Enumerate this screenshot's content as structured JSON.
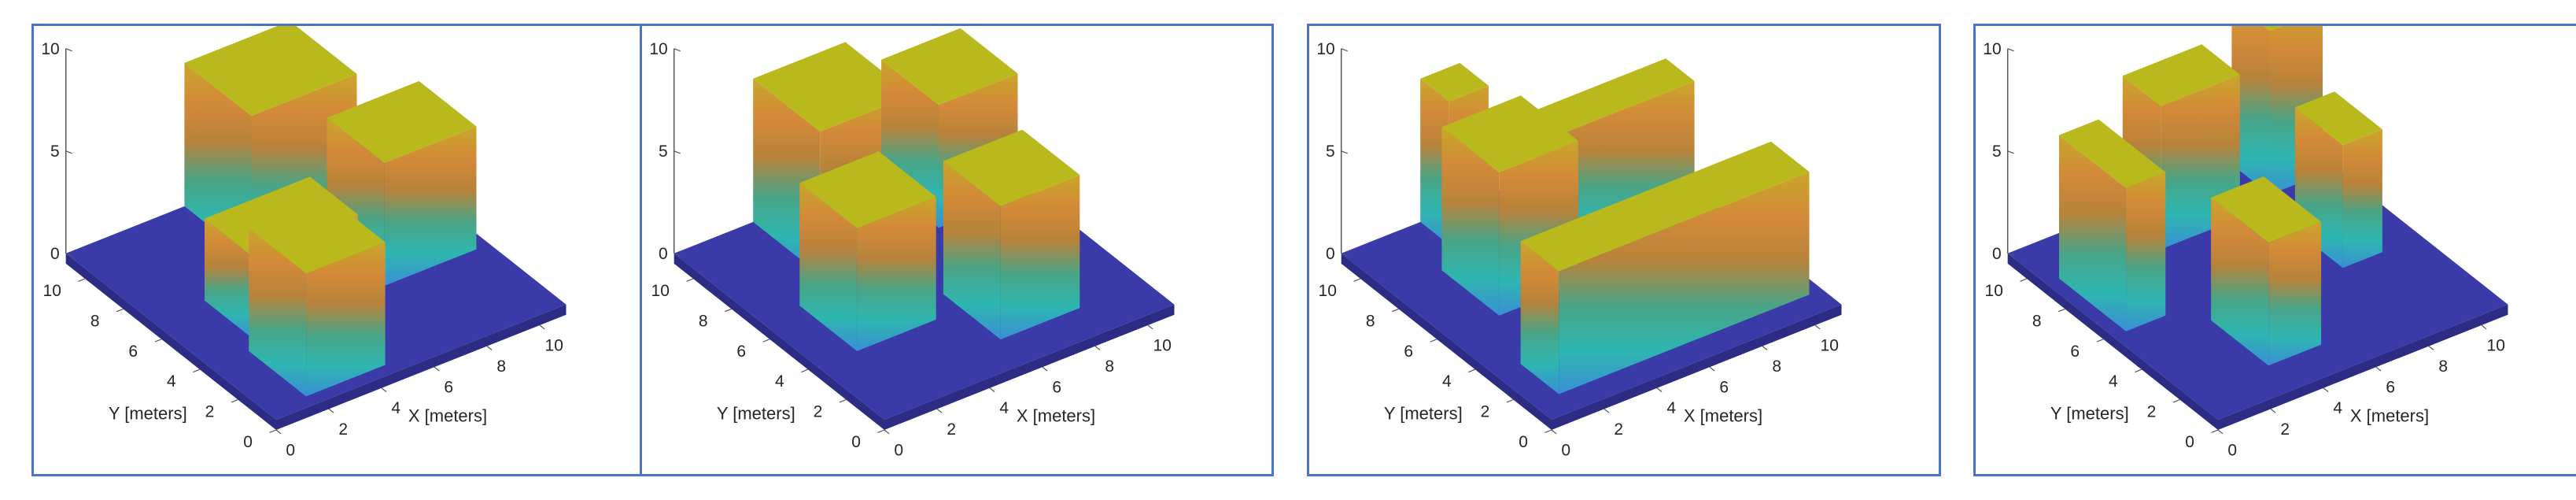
{
  "chart_data": [
    {
      "type": "3d-surface",
      "xlabel": "X [meters]",
      "ylabel": "Y [meters]",
      "zlabel": "",
      "x_ticks": [
        0,
        2,
        4,
        6,
        8,
        10
      ],
      "y_ticks": [
        0,
        2,
        4,
        6,
        8,
        10
      ],
      "z_ticks": [
        0,
        5,
        10
      ],
      "xlim": [
        0,
        11
      ],
      "ylim": [
        0,
        11
      ],
      "zlim": [
        0,
        10
      ],
      "buildings": [
        {
          "x": [
            4.5,
            8.5
          ],
          "y": [
            7.5,
            11
          ],
          "height": 7
        },
        {
          "x": [
            2,
            6
          ],
          "y": [
            4,
            6.5
          ],
          "height": 4
        },
        {
          "x": [
            1.5,
            4.5
          ],
          "y": [
            0.5,
            3.5
          ],
          "height": 6
        },
        {
          "x": [
            7,
            10.5
          ],
          "y": [
            4,
            7
          ],
          "height": 6
        }
      ]
    },
    {
      "type": "3d-surface",
      "xlabel": "X [meters]",
      "ylabel": "Y [meters]",
      "zlabel": "",
      "x_ticks": [
        0,
        2,
        4,
        6,
        8,
        10
      ],
      "y_ticks": [
        0,
        2,
        4,
        6,
        8,
        10
      ],
      "z_ticks": [
        0,
        5,
        10
      ],
      "xlim": [
        0,
        11
      ],
      "ylim": [
        0,
        11
      ],
      "zlim": [
        0,
        10
      ],
      "buildings": [
        {
          "x": [
            3,
            6.5
          ],
          "y": [
            7.5,
            11
          ],
          "height": 7
        },
        {
          "x": [
            7.5,
            10.5
          ],
          "y": [
            7.5,
            10.5
          ],
          "height": 6
        },
        {
          "x": [
            1.5,
            4.5
          ],
          "y": [
            3.5,
            6.5
          ],
          "height": 6
        },
        {
          "x": [
            5.5,
            8.5
          ],
          "y": [
            1.5,
            4.5
          ],
          "height": 6.5
        }
      ]
    },
    {
      "type": "3d-surface",
      "xlabel": "X [meters]",
      "ylabel": "Y [meters]",
      "zlabel": "",
      "x_ticks": [
        0,
        2,
        4,
        6,
        8,
        10
      ],
      "y_ticks": [
        0,
        2,
        4,
        6,
        8,
        10
      ],
      "z_ticks": [
        0,
        5,
        10
      ],
      "xlim": [
        0,
        11
      ],
      "ylim": [
        0,
        11
      ],
      "zlim": [
        0,
        10
      ],
      "buildings": [
        {
          "x": [
            3,
            4.5
          ],
          "y": [
            9.5,
            11
          ],
          "height": 7
        },
        {
          "x": [
            2,
            5
          ],
          "y": [
            5.5,
            8.5
          ],
          "height": 7
        },
        {
          "x": [
            5.5,
            10.5
          ],
          "y": [
            7,
            8.5
          ],
          "height": 6
        },
        {
          "x": [
            1,
            10.5
          ],
          "y": [
            1,
            3
          ],
          "height": 6
        }
      ]
    },
    {
      "type": "3d-surface",
      "xlabel": "X [meters]",
      "ylabel": "Y [meters]",
      "zlabel": "",
      "x_ticks": [
        0,
        2,
        4,
        6,
        8,
        10
      ],
      "y_ticks": [
        0,
        2,
        4,
        6,
        8,
        10
      ],
      "z_ticks": [
        0,
        5,
        10
      ],
      "xlim": [
        0,
        11
      ],
      "ylim": [
        0,
        11
      ],
      "zlim": [
        0,
        10
      ],
      "buildings": [
        {
          "x": [
            0.5,
            2
          ],
          "y": [
            5.5,
            9
          ],
          "height": 7
        },
        {
          "x": [
            4,
            7
          ],
          "y": [
            8.5,
            10.5
          ],
          "height": 7
        },
        {
          "x": [
            8.5,
            10.5
          ],
          "y": [
            9,
            11
          ],
          "height": 8
        },
        {
          "x": [
            3,
            5
          ],
          "y": [
            1.5,
            4.5
          ],
          "height": 6
        },
        {
          "x": [
            8,
            9.5
          ],
          "y": [
            4.5,
            7
          ],
          "height": 6
        }
      ]
    }
  ],
  "colors": {
    "ground": "#3a3aa8",
    "ground_side": "#2c2c85",
    "roof": "#b9b81c",
    "border": "#4a74c4",
    "facade_gradient": [
      "#c9a62a",
      "#d38a38",
      "#b8823a",
      "#4aa486",
      "#2eb6b0",
      "#3a90d4"
    ]
  }
}
